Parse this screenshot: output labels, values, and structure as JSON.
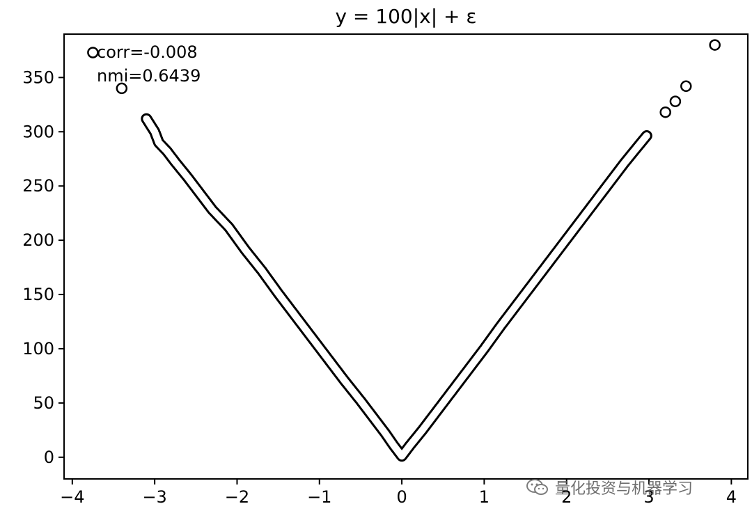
{
  "chart_data": {
    "type": "scatter",
    "title": "y = 100|x| + ε",
    "xlabel": "",
    "ylabel": "",
    "xlim": [
      -4.1,
      4.2
    ],
    "ylim": [
      -20,
      390
    ],
    "xticks": [
      -4,
      -3,
      -2,
      -1,
      0,
      1,
      2,
      3,
      4
    ],
    "xtick_labels": [
      "−4",
      "−3",
      "−2",
      "−1",
      "0",
      "1",
      "2",
      "3",
      "4"
    ],
    "yticks": [
      0,
      50,
      100,
      150,
      200,
      250,
      300,
      350
    ],
    "ytick_labels": [
      "0",
      "50",
      "100",
      "150",
      "200",
      "250",
      "300",
      "350"
    ],
    "grid": false,
    "annotations": [
      "corr=-0.008",
      "nmi=0.6439"
    ],
    "marker": "hollow-circle",
    "series": [
      {
        "x": [
          -3.75,
          -3.4,
          -3.1,
          -3.05,
          -3.0,
          -2.95,
          -2.85,
          -2.75,
          -2.6,
          -2.45,
          -2.3,
          -2.1,
          -1.9,
          -1.7,
          -1.5,
          -1.3,
          -1.1,
          -0.9,
          -0.7,
          -0.5,
          -0.35,
          -0.2,
          -0.1,
          0.0,
          0.1,
          0.25,
          0.4,
          0.6,
          0.8,
          1.0,
          1.2,
          1.4,
          1.6,
          1.8,
          2.0,
          2.2,
          2.4,
          2.55,
          2.7,
          2.85,
          2.98,
          3.2,
          3.32,
          3.45,
          3.8
        ],
        "y": [
          373,
          340,
          312,
          306,
          300,
          290,
          282,
          272,
          258,
          243,
          228,
          212,
          191,
          172,
          151,
          131,
          111,
          91,
          71,
          52,
          37,
          22,
          11,
          1,
          11,
          25,
          40,
          60,
          80,
          100,
          121,
          141,
          161,
          181,
          201,
          221,
          241,
          256,
          271,
          285,
          297,
          318,
          328,
          342,
          380
        ]
      }
    ]
  },
  "watermark": {
    "text": "量化投资与机器学习",
    "icon": "wechat-icon"
  }
}
